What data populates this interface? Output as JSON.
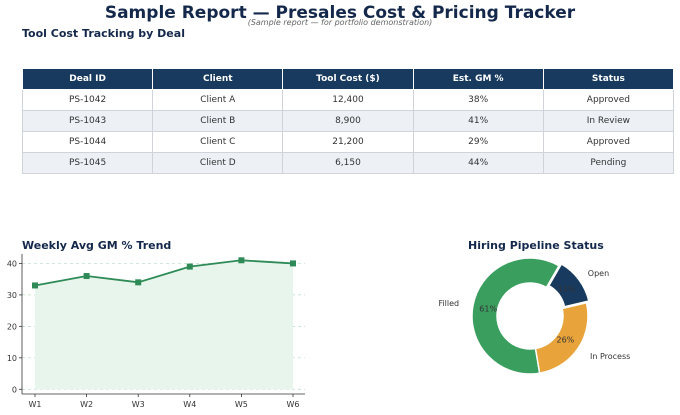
{
  "report": {
    "title": "Sample Report — Presales Cost & Pricing Tracker",
    "subtitle": "(Sample report — for portfolio demonstration)"
  },
  "table_section": {
    "title": "Tool Cost Tracking by Deal",
    "columns": [
      "Deal ID",
      "Client",
      "Tool Cost ($)",
      "Est. GM %",
      "Status"
    ],
    "rows": [
      [
        "PS-1042",
        "Client A",
        "12,400",
        "38%",
        "Approved"
      ],
      [
        "PS-1043",
        "Client B",
        "8,900",
        "41%",
        "In Review"
      ],
      [
        "PS-1044",
        "Client C",
        "21,200",
        "29%",
        "Approved"
      ],
      [
        "PS-1045",
        "Client D",
        "6,150",
        "44%",
        "Pending"
      ]
    ]
  },
  "chart_data": [
    {
      "type": "line",
      "title": "Weekly Avg GM % Trend",
      "x": [
        "W1",
        "W2",
        "W3",
        "W4",
        "W5",
        "W6"
      ],
      "values": [
        33,
        36,
        34,
        39,
        41,
        40
      ],
      "xlabel": "",
      "ylabel": "",
      "ylim": [
        -1.5,
        43
      ],
      "yticks": [
        0,
        10,
        20,
        30,
        40
      ],
      "grid": true,
      "colors": {
        "line": "#2e8b57",
        "fill": "#e8f5ec",
        "grid": "#b9dcc6"
      }
    },
    {
      "type": "pie",
      "title": "Hiring Pipeline Status",
      "donut": true,
      "slices": [
        {
          "label": "Filled",
          "value": 61,
          "pct_label": "61%",
          "color": "#3a9e5f"
        },
        {
          "label": "Open",
          "value": 13,
          "pct_label": "13%",
          "color": "#173a5e"
        },
        {
          "label": "In Process",
          "value": 26,
          "pct_label": "26%",
          "color": "#e8a33a"
        }
      ]
    }
  ]
}
